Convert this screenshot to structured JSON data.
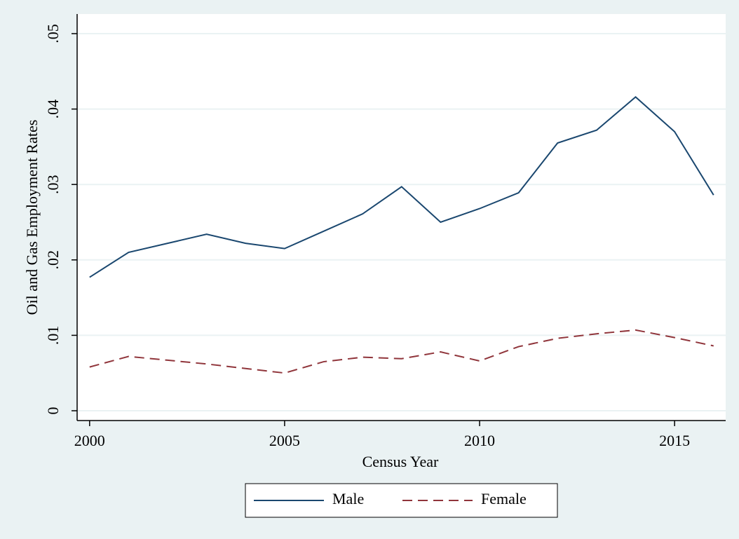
{
  "chart_data": {
    "type": "line",
    "xlabel": "Census Year",
    "ylabel": "Oil and Gas Employment Rates",
    "x": [
      2000,
      2001,
      2002,
      2003,
      2004,
      2005,
      2006,
      2007,
      2008,
      2009,
      2010,
      2011,
      2012,
      2013,
      2014,
      2015,
      2016
    ],
    "series": [
      {
        "name": "Male",
        "color": "#1a476f",
        "style": "solid",
        "values": [
          0.0177,
          0.021,
          0.0222,
          0.0234,
          0.0222,
          0.0215,
          0.0238,
          0.0261,
          0.0297,
          0.025,
          0.0268,
          0.0289,
          0.0355,
          0.0372,
          0.0416,
          0.037,
          0.0286
        ]
      },
      {
        "name": "Female",
        "color": "#90353b",
        "style": "dashed",
        "values": [
          0.0058,
          0.0072,
          0.0067,
          0.0062,
          0.0056,
          0.005,
          0.0065,
          0.0071,
          0.0069,
          0.0078,
          0.0066,
          0.0085,
          0.0096,
          0.0102,
          0.0107,
          0.0097,
          0.0086
        ]
      }
    ],
    "xlim": [
      1999.68,
      2016.31
    ],
    "xticks": [
      2000,
      2005,
      2010,
      2015
    ],
    "ylim": [
      -0.0013,
      0.0526
    ],
    "yticks": [
      0,
      {
        "value": 0.01,
        "label": ".01"
      },
      {
        "value": 0.02,
        "label": ".02"
      },
      {
        "value": 0.03,
        "label": ".03"
      },
      {
        "value": 0.04,
        "label": ".04"
      },
      {
        "value": 0.05,
        "label": ".05"
      }
    ],
    "grid": true,
    "legend_position": "bottom"
  }
}
